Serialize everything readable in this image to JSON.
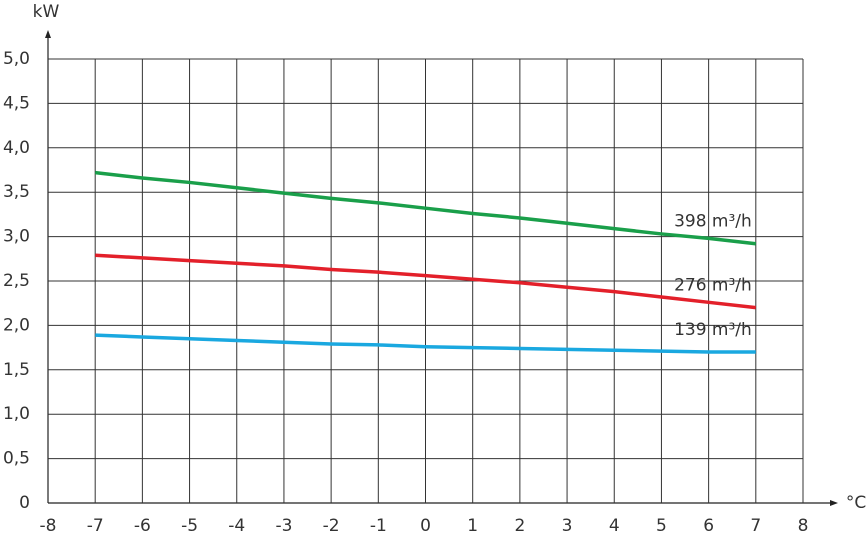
{
  "chart_data": {
    "type": "line",
    "x_label": "°C",
    "y_label": "kW",
    "x": [
      -7,
      -6,
      -5,
      -4,
      -3,
      -2,
      -1,
      0,
      1,
      2,
      3,
      4,
      5,
      6,
      7
    ],
    "series": [
      {
        "name": "398 m³/h",
        "color": "#1a9f4a",
        "values": [
          3.72,
          3.66,
          3.61,
          3.55,
          3.49,
          3.43,
          3.38,
          3.32,
          3.26,
          3.21,
          3.15,
          3.09,
          3.03,
          2.98,
          2.92
        ]
      },
      {
        "name": "276 m³/h",
        "color": "#e3202a",
        "values": [
          2.79,
          2.76,
          2.73,
          2.7,
          2.67,
          2.63,
          2.6,
          2.56,
          2.52,
          2.48,
          2.43,
          2.38,
          2.32,
          2.26,
          2.2
        ]
      },
      {
        "name": "139 m³/h",
        "color": "#1aa8e0",
        "values": [
          1.89,
          1.87,
          1.85,
          1.83,
          1.81,
          1.79,
          1.78,
          1.76,
          1.75,
          1.74,
          1.73,
          1.72,
          1.71,
          1.7,
          1.7
        ]
      }
    ],
    "xlim": [
      -8,
      8
    ],
    "ylim": [
      0,
      5
    ],
    "xticks": [
      -8,
      -7,
      -6,
      -5,
      -4,
      -3,
      -2,
      -1,
      0,
      1,
      2,
      3,
      4,
      5,
      6,
      7,
      8
    ],
    "yticks": [
      0,
      {
        "value": 0.5,
        "label": "0,5"
      },
      {
        "value": 1,
        "label": "1,0"
      },
      {
        "value": 1.5,
        "label": "1,5"
      },
      {
        "value": 2,
        "label": "2,0"
      },
      {
        "value": 2.5,
        "label": "2,5"
      },
      {
        "value": 3,
        "label": "3,0"
      },
      {
        "value": 3.5,
        "label": "3,5"
      },
      {
        "value": 4,
        "label": "4,0"
      },
      {
        "value": 4.5,
        "label": "4,5"
      },
      {
        "value": 5,
        "label": "5,0"
      }
    ],
    "grid": true
  }
}
